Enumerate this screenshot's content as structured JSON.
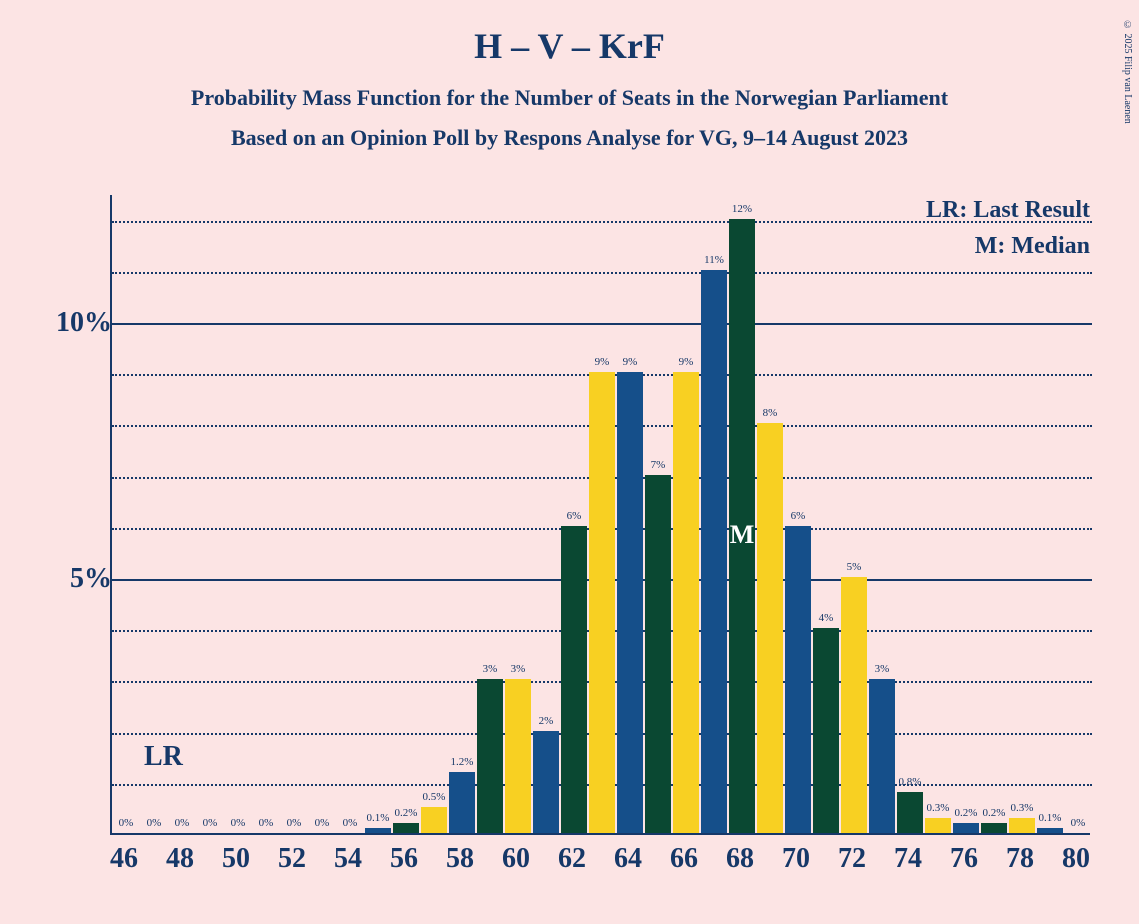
{
  "title": "H – V – KrF",
  "subtitle1": "Probability Mass Function for the Number of Seats in the Norwegian Parliament",
  "subtitle2": "Based on an Opinion Poll by Respons Analyse for VG, 9–14 August 2023",
  "copyright": "© 2025 Filip van Laenen",
  "legend": {
    "lr": "LR: Last Result",
    "m": "M: Median"
  },
  "lr_marker": "LR",
  "m_marker": "M",
  "chart": {
    "type": "bar",
    "background": "#fce4e4",
    "axis_color": "#163868",
    "text_color": "#163868",
    "bar_colors": [
      "#154f8a",
      "#0a4832",
      "#f8d022"
    ],
    "ymax": 12.5,
    "y_solid_ticks": [
      0,
      5,
      10
    ],
    "y_dotted_ticks": [
      1,
      2,
      3,
      4,
      6,
      7,
      8,
      9,
      11,
      12
    ],
    "y_labels": [
      {
        "v": 5,
        "t": "5%"
      },
      {
        "v": 10,
        "t": "10%"
      }
    ],
    "x_labels": [
      "46",
      "48",
      "50",
      "52",
      "54",
      "56",
      "58",
      "60",
      "62",
      "64",
      "66",
      "68",
      "70",
      "72",
      "74",
      "76",
      "78",
      "80"
    ],
    "x_count": 35,
    "lr_pos": 1.5,
    "m_pos": 22.5,
    "bars": [
      {
        "i": 0,
        "c": 0,
        "v": 0,
        "l": "0%"
      },
      {
        "i": 1,
        "c": 1,
        "v": 0,
        "l": "0%"
      },
      {
        "i": 2,
        "c": 2,
        "v": 0,
        "l": "0%"
      },
      {
        "i": 3,
        "c": 0,
        "v": 0,
        "l": "0%"
      },
      {
        "i": 4,
        "c": 1,
        "v": 0,
        "l": "0%"
      },
      {
        "i": 5,
        "c": 2,
        "v": 0,
        "l": "0%"
      },
      {
        "i": 6,
        "c": 0,
        "v": 0,
        "l": "0%"
      },
      {
        "i": 7,
        "c": 1,
        "v": 0,
        "l": "0%"
      },
      {
        "i": 8,
        "c": 2,
        "v": 0,
        "l": "0%"
      },
      {
        "i": 9,
        "c": 0,
        "v": 0.1,
        "l": "0.1%"
      },
      {
        "i": 10,
        "c": 1,
        "v": 0.2,
        "l": "0.2%"
      },
      {
        "i": 11,
        "c": 2,
        "v": 0.5,
        "l": "0.5%"
      },
      {
        "i": 12,
        "c": 0,
        "v": 1.2,
        "l": "1.2%"
      },
      {
        "i": 13,
        "c": 1,
        "v": 3,
        "l": "3%"
      },
      {
        "i": 14,
        "c": 2,
        "v": 3,
        "l": "3%"
      },
      {
        "i": 15,
        "c": 0,
        "v": 2,
        "l": "2%"
      },
      {
        "i": 16,
        "c": 1,
        "v": 6,
        "l": "6%"
      },
      {
        "i": 17,
        "c": 2,
        "v": 9,
        "l": "9%"
      },
      {
        "i": 18,
        "c": 0,
        "v": 9,
        "l": "9%"
      },
      {
        "i": 19,
        "c": 1,
        "v": 7,
        "l": "7%"
      },
      {
        "i": 20,
        "c": 2,
        "v": 9,
        "l": "9%"
      },
      {
        "i": 21,
        "c": 0,
        "v": 11,
        "l": "11%"
      },
      {
        "i": 22,
        "c": 1,
        "v": 12,
        "l": "12%"
      },
      {
        "i": 23,
        "c": 2,
        "v": 8,
        "l": "8%"
      },
      {
        "i": 24,
        "c": 0,
        "v": 6,
        "l": "6%"
      },
      {
        "i": 25,
        "c": 1,
        "v": 4,
        "l": "4%"
      },
      {
        "i": 26,
        "c": 2,
        "v": 5,
        "l": "5%"
      },
      {
        "i": 27,
        "c": 0,
        "v": 3,
        "l": "3%"
      },
      {
        "i": 28,
        "c": 1,
        "v": 0.8,
        "l": "0.8%"
      },
      {
        "i": 29,
        "c": 2,
        "v": 0.3,
        "l": "0.3%"
      },
      {
        "i": 30,
        "c": 0,
        "v": 0.2,
        "l": "0.2%"
      },
      {
        "i": 31,
        "c": 1,
        "v": 0.2,
        "l": "0.2%"
      },
      {
        "i": 32,
        "c": 2,
        "v": 0.3,
        "l": "0.3%"
      },
      {
        "i": 33,
        "c": 0,
        "v": 0.1,
        "l": "0.1%"
      },
      {
        "i": 34,
        "c": 1,
        "v": 0,
        "l": "0%"
      }
    ]
  }
}
